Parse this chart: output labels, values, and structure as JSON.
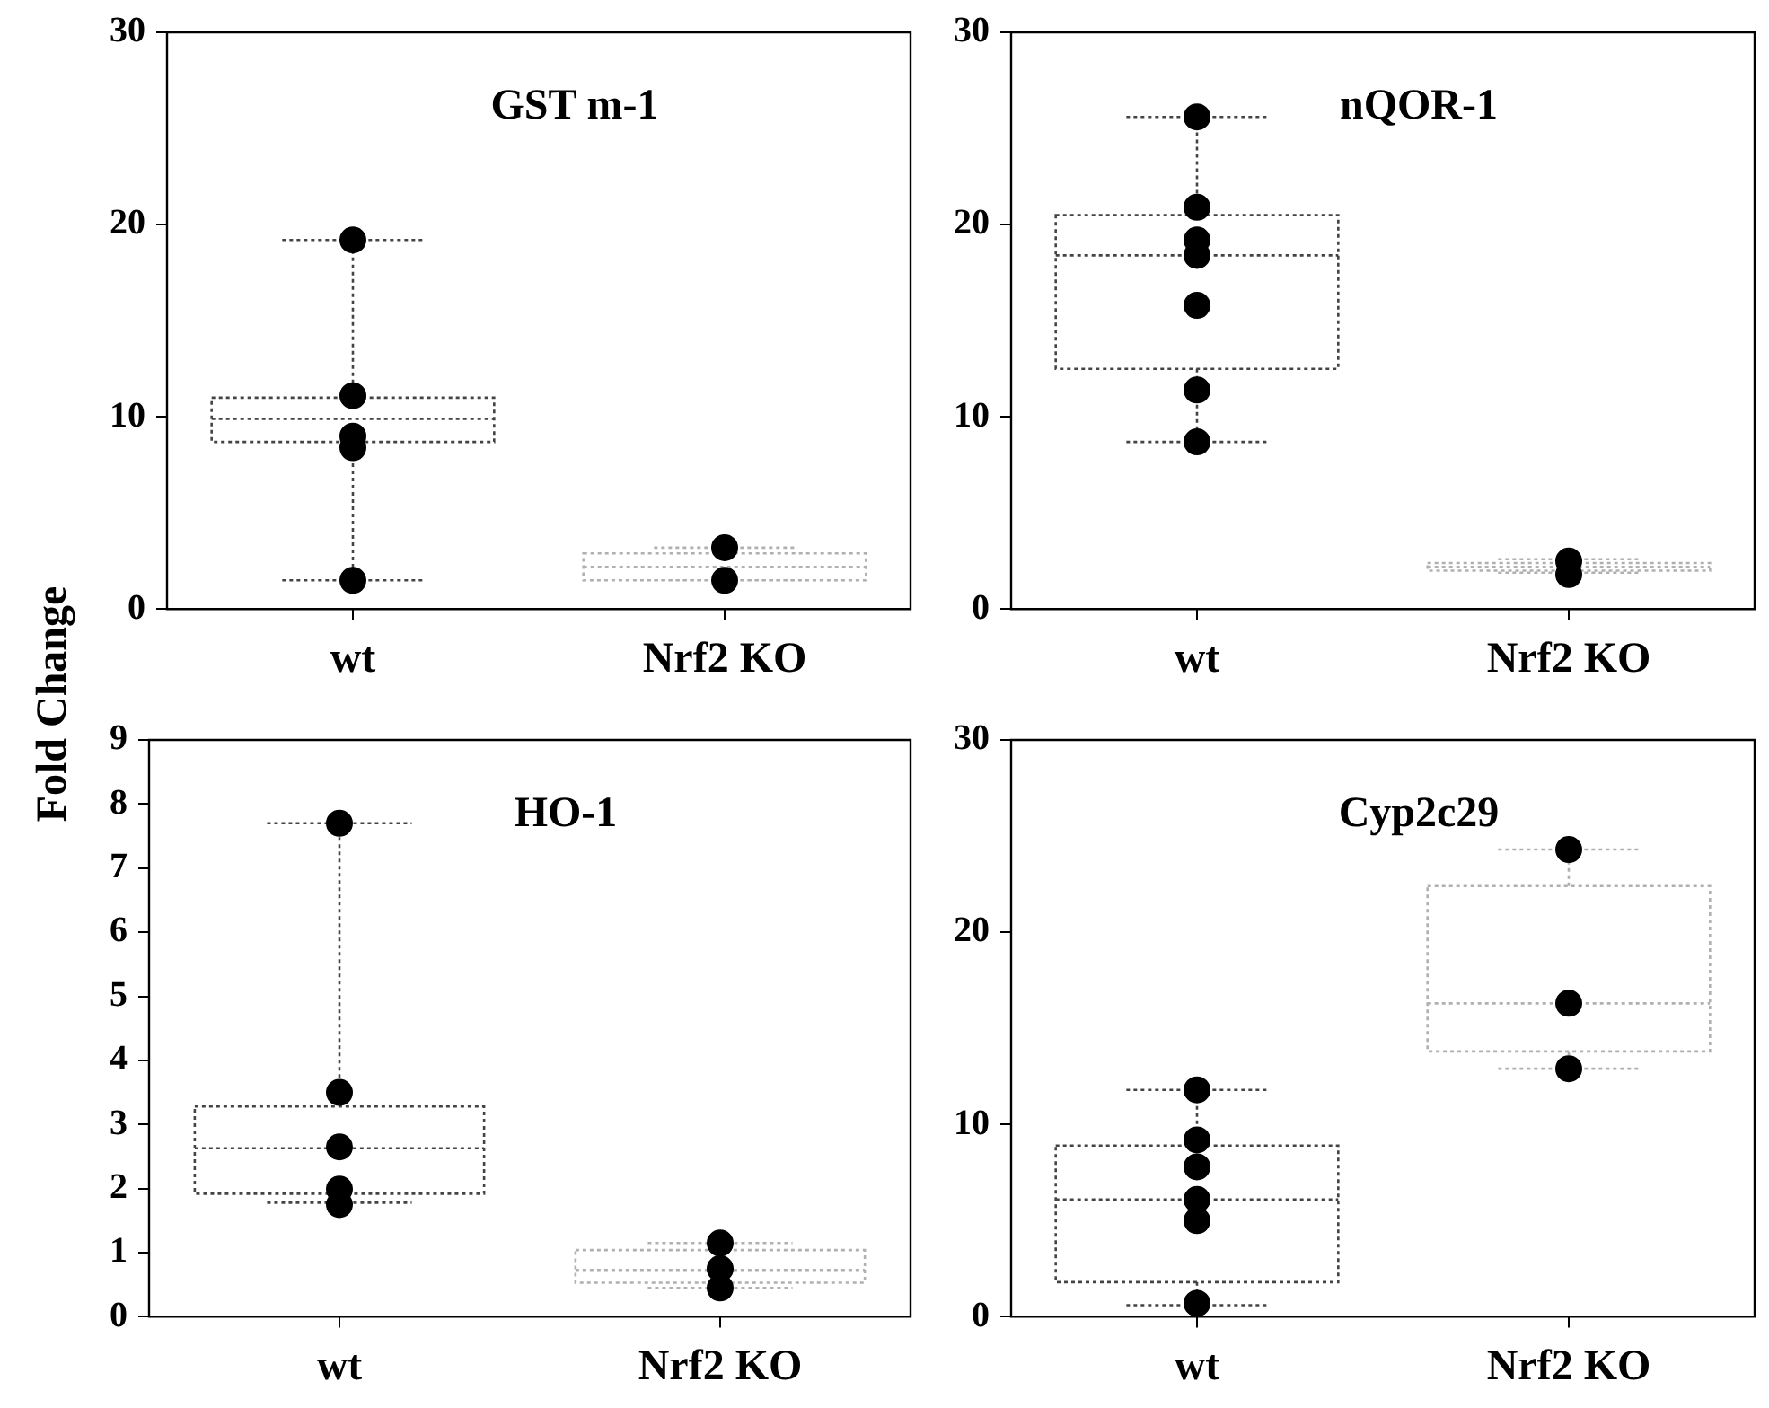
{
  "chart_data": [
    {
      "type": "box",
      "title": "GST m-1",
      "ylabel": "Fold Change",
      "categories": [
        "wt",
        "Nrf2 KO"
      ],
      "ylim": [
        0,
        30
      ],
      "yticks": [
        0,
        10,
        20,
        30
      ],
      "grid": false,
      "legend": false,
      "series": [
        {
          "type": "box",
          "colors": [
            "#444444",
            "#b0b0b0"
          ],
          "line_style": "dotted",
          "boxes": [
            {
              "low": 1.5,
              "q1": 8.7,
              "median": 9.9,
              "q3": 11.0,
              "high": 19.2
            },
            {
              "low": 1.5,
              "q1": 1.5,
              "median": 2.2,
              "q3": 2.9,
              "high": 3.2
            }
          ]
        },
        {
          "type": "scatter",
          "color": "#000000",
          "marker": "circle",
          "x": [
            "wt",
            "wt",
            "wt",
            "wt",
            "wt",
            "wt",
            "wt",
            "Nrf2 KO",
            "Nrf2 KO"
          ],
          "values": [
            19.2,
            11.1,
            null,
            null,
            9.0,
            8.4,
            1.5,
            3.2,
            1.5
          ]
        }
      ]
    },
    {
      "type": "box",
      "title": "nQOR-1",
      "categories": [
        "wt",
        "Nrf2 KO"
      ],
      "ylim": [
        0,
        30
      ],
      "yticks": [
        0,
        10,
        20,
        30
      ],
      "grid": false,
      "legend": false,
      "series": [
        {
          "type": "box",
          "colors": [
            "#444444",
            "#b0b0b0"
          ],
          "line_style": "dotted",
          "boxes": [
            {
              "low": 8.7,
              "q1": 12.5,
              "median": 18.4,
              "q3": 20.5,
              "high": 25.6
            },
            {
              "low": 1.9,
              "q1": 2.0,
              "median": 2.2,
              "q3": 2.4,
              "high": 2.6
            }
          ]
        },
        {
          "type": "scatter",
          "color": "#000000",
          "marker": "circle",
          "x": [
            "wt",
            "wt",
            "wt",
            "wt",
            "wt",
            "wt",
            "wt",
            "Nrf2 KO",
            "Nrf2 KO"
          ],
          "values": [
            25.6,
            20.9,
            19.2,
            18.4,
            15.8,
            11.4,
            8.7,
            2.5,
            1.8
          ]
        }
      ]
    },
    {
      "type": "box",
      "title": "HO-1",
      "categories": [
        "wt",
        "Nrf2 KO"
      ],
      "ylim": [
        0,
        9
      ],
      "yticks": [
        0,
        1,
        2,
        3,
        4,
        5,
        6,
        7,
        8,
        9
      ],
      "grid": false,
      "legend": false,
      "series": [
        {
          "type": "box",
          "colors": [
            "#444444",
            "#b0b0b0"
          ],
          "line_style": "dotted",
          "boxes": [
            {
              "low": 1.78,
              "q1": 1.92,
              "median": 2.63,
              "q3": 3.28,
              "high": 7.7
            },
            {
              "low": 0.45,
              "q1": 0.53,
              "median": 0.73,
              "q3": 1.04,
              "high": 1.15
            }
          ]
        },
        {
          "type": "scatter",
          "color": "#000000",
          "marker": "circle",
          "x": [
            "wt",
            "wt",
            "wt",
            "wt",
            "wt",
            "Nrf2 KO",
            "Nrf2 KO",
            "Nrf2 KO"
          ],
          "values": [
            7.7,
            3.5,
            2.65,
            1.99,
            1.75,
            1.15,
            0.75,
            0.45
          ]
        }
      ]
    },
    {
      "type": "box",
      "title": "Cyp2c29",
      "categories": [
        "wt",
        "Nrf2 KO"
      ],
      "ylim": [
        0,
        30
      ],
      "yticks": [
        0,
        10,
        20,
        30
      ],
      "grid": false,
      "legend": false,
      "series": [
        {
          "type": "box",
          "colors": [
            "#444444",
            "#b0b0b0"
          ],
          "line_style": "dotted",
          "boxes": [
            {
              "low": 0.6,
              "q1": 1.8,
              "median": 6.1,
              "q3": 8.9,
              "high": 11.8
            },
            {
              "low": 12.9,
              "q1": 13.8,
              "median": 16.3,
              "q3": 22.4,
              "high": 24.3
            }
          ]
        },
        {
          "type": "scatter",
          "color": "#000000",
          "marker": "circle",
          "x": [
            "wt",
            "wt",
            "wt",
            "wt",
            "wt",
            "wt",
            "Nrf2 KO",
            "Nrf2 KO",
            "Nrf2 KO"
          ],
          "values": [
            11.8,
            9.2,
            7.8,
            6.1,
            5.0,
            0.7,
            24.3,
            16.3,
            12.9
          ]
        }
      ]
    }
  ]
}
